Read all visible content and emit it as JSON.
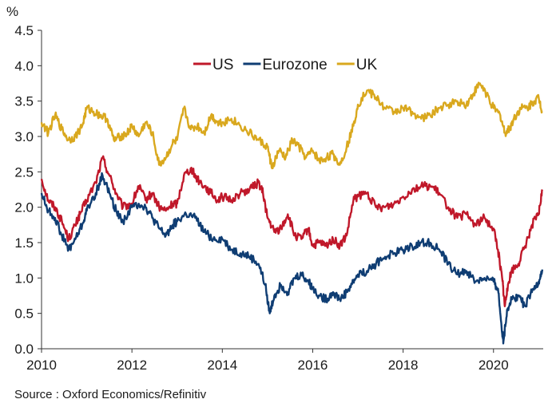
{
  "chart_data": {
    "type": "line",
    "title": "",
    "ylabel": "%",
    "xlabel": "",
    "xlim": [
      2010,
      2021.1
    ],
    "ylim": [
      0,
      4.5
    ],
    "x_ticks": [
      2010,
      2012,
      2014,
      2016,
      2018,
      2020
    ],
    "x_tick_labels": [
      "2010",
      "2012",
      "2014",
      "2016",
      "2018",
      "2020"
    ],
    "y_ticks": [
      0,
      0.5,
      1.0,
      1.5,
      2.0,
      2.5,
      3.0,
      3.5,
      4.0,
      4.5
    ],
    "y_tick_labels": [
      "0.0",
      "0.5",
      "1.0",
      "1.5",
      "2.0",
      "2.5",
      "3.0",
      "3.5",
      "4.0",
      "4.5"
    ],
    "legend_position": "top-center",
    "series": [
      {
        "name": "US",
        "color": "#c0182a",
        "x": [
          2010.0,
          2010.15,
          2010.3,
          2010.45,
          2010.6,
          2010.75,
          2010.85,
          2011.0,
          2011.2,
          2011.35,
          2011.5,
          2011.65,
          2011.8,
          2012.0,
          2012.15,
          2012.3,
          2012.45,
          2012.6,
          2012.75,
          2012.9,
          2013.0,
          2013.15,
          2013.3,
          2013.45,
          2013.6,
          2013.75,
          2013.9,
          2014.0,
          2014.2,
          2014.4,
          2014.6,
          2014.8,
          2014.9,
          2015.0,
          2015.15,
          2015.3,
          2015.45,
          2015.6,
          2015.75,
          2015.9,
          2016.0,
          2016.15,
          2016.3,
          2016.45,
          2016.6,
          2016.75,
          2016.9,
          2017.0,
          2017.2,
          2017.4,
          2017.6,
          2017.8,
          2018.0,
          2018.2,
          2018.4,
          2018.6,
          2018.8,
          2019.0,
          2019.2,
          2019.4,
          2019.6,
          2019.8,
          2020.0,
          2020.1,
          2020.2,
          2020.25,
          2020.3,
          2020.4,
          2020.55,
          2020.7,
          2020.85,
          2021.0,
          2021.08
        ],
        "y": [
          2.4,
          2.1,
          2.0,
          1.8,
          1.55,
          1.75,
          1.9,
          2.1,
          2.35,
          2.7,
          2.45,
          2.2,
          2.0,
          2.05,
          2.3,
          2.1,
          2.2,
          2.0,
          1.95,
          2.05,
          2.05,
          2.45,
          2.55,
          2.4,
          2.3,
          2.2,
          2.1,
          2.15,
          2.1,
          2.2,
          2.25,
          2.35,
          2.2,
          1.85,
          1.65,
          1.7,
          1.9,
          1.6,
          1.55,
          1.7,
          1.45,
          1.5,
          1.45,
          1.55,
          1.45,
          1.6,
          2.1,
          2.15,
          2.2,
          2.0,
          2.0,
          2.05,
          2.15,
          2.25,
          2.3,
          2.3,
          2.2,
          2.0,
          1.85,
          1.9,
          1.75,
          1.85,
          1.7,
          1.4,
          0.95,
          0.6,
          0.85,
          1.1,
          1.2,
          1.45,
          1.75,
          1.9,
          2.25
        ]
      },
      {
        "name": "Eurozone",
        "color": "#0f3d73",
        "x": [
          2010.0,
          2010.15,
          2010.3,
          2010.45,
          2010.6,
          2010.75,
          2010.9,
          2011.0,
          2011.2,
          2011.35,
          2011.5,
          2011.65,
          2011.8,
          2012.0,
          2012.15,
          2012.3,
          2012.45,
          2012.6,
          2012.75,
          2012.9,
          2013.0,
          2013.2,
          2013.4,
          2013.6,
          2013.8,
          2014.0,
          2014.2,
          2014.4,
          2014.6,
          2014.8,
          2014.95,
          2015.05,
          2015.15,
          2015.3,
          2015.45,
          2015.6,
          2015.75,
          2015.9,
          2016.0,
          2016.15,
          2016.3,
          2016.45,
          2016.6,
          2016.75,
          2016.9,
          2017.0,
          2017.2,
          2017.4,
          2017.6,
          2017.8,
          2018.0,
          2018.2,
          2018.4,
          2018.6,
          2018.8,
          2019.0,
          2019.2,
          2019.4,
          2019.6,
          2019.8,
          2020.0,
          2020.1,
          2020.18,
          2020.22,
          2020.3,
          2020.4,
          2020.55,
          2020.7,
          2020.85,
          2021.0,
          2021.08
        ],
        "y": [
          2.2,
          1.95,
          1.85,
          1.6,
          1.4,
          1.55,
          1.75,
          1.95,
          2.2,
          2.45,
          2.2,
          1.95,
          1.8,
          2.0,
          2.05,
          2.0,
          1.85,
          1.7,
          1.6,
          1.75,
          1.8,
          1.9,
          1.85,
          1.65,
          1.55,
          1.55,
          1.4,
          1.35,
          1.3,
          1.2,
          0.9,
          0.5,
          0.75,
          0.9,
          0.8,
          1.0,
          1.05,
          0.95,
          0.85,
          0.75,
          0.7,
          0.8,
          0.7,
          0.8,
          0.95,
          1.05,
          1.1,
          1.2,
          1.3,
          1.35,
          1.4,
          1.45,
          1.5,
          1.5,
          1.4,
          1.2,
          1.05,
          1.1,
          0.95,
          1.0,
          0.95,
          0.85,
          0.3,
          0.1,
          0.55,
          0.7,
          0.75,
          0.6,
          0.8,
          0.95,
          1.12
        ]
      },
      {
        "name": "UK",
        "color": "#d9a81e",
        "x": [
          2010.0,
          2010.15,
          2010.3,
          2010.45,
          2010.6,
          2010.75,
          2010.9,
          2011.0,
          2011.15,
          2011.3,
          2011.45,
          2011.6,
          2011.75,
          2011.9,
          2012.0,
          2012.15,
          2012.3,
          2012.45,
          2012.6,
          2012.75,
          2012.9,
          2013.0,
          2013.15,
          2013.3,
          2013.45,
          2013.6,
          2013.75,
          2013.9,
          2014.0,
          2014.2,
          2014.4,
          2014.6,
          2014.8,
          2015.0,
          2015.1,
          2015.25,
          2015.4,
          2015.55,
          2015.7,
          2015.85,
          2016.0,
          2016.15,
          2016.3,
          2016.45,
          2016.6,
          2016.75,
          2016.9,
          2017.0,
          2017.2,
          2017.4,
          2017.6,
          2017.8,
          2018.0,
          2018.2,
          2018.4,
          2018.6,
          2018.8,
          2019.0,
          2019.2,
          2019.4,
          2019.55,
          2019.7,
          2019.85,
          2020.0,
          2020.15,
          2020.25,
          2020.35,
          2020.45,
          2020.6,
          2020.75,
          2020.9,
          2021.0,
          2021.08
        ],
        "y": [
          3.2,
          3.05,
          3.3,
          3.1,
          2.95,
          3.0,
          3.15,
          3.4,
          3.35,
          3.3,
          3.25,
          2.95,
          3.0,
          3.05,
          3.15,
          3.0,
          3.2,
          3.05,
          2.6,
          2.7,
          2.9,
          2.95,
          3.4,
          3.1,
          3.15,
          3.05,
          3.3,
          3.2,
          3.2,
          3.25,
          3.15,
          3.05,
          2.95,
          2.85,
          2.55,
          2.8,
          2.7,
          2.95,
          2.85,
          2.7,
          2.8,
          2.65,
          2.7,
          2.75,
          2.6,
          2.85,
          3.15,
          3.45,
          3.65,
          3.55,
          3.4,
          3.35,
          3.4,
          3.35,
          3.25,
          3.3,
          3.4,
          3.45,
          3.5,
          3.45,
          3.6,
          3.75,
          3.6,
          3.4,
          3.3,
          3.05,
          3.1,
          3.25,
          3.4,
          3.4,
          3.5,
          3.55,
          3.35
        ]
      }
    ],
    "source": "Source : Oxford Economics/Refinitiv"
  }
}
